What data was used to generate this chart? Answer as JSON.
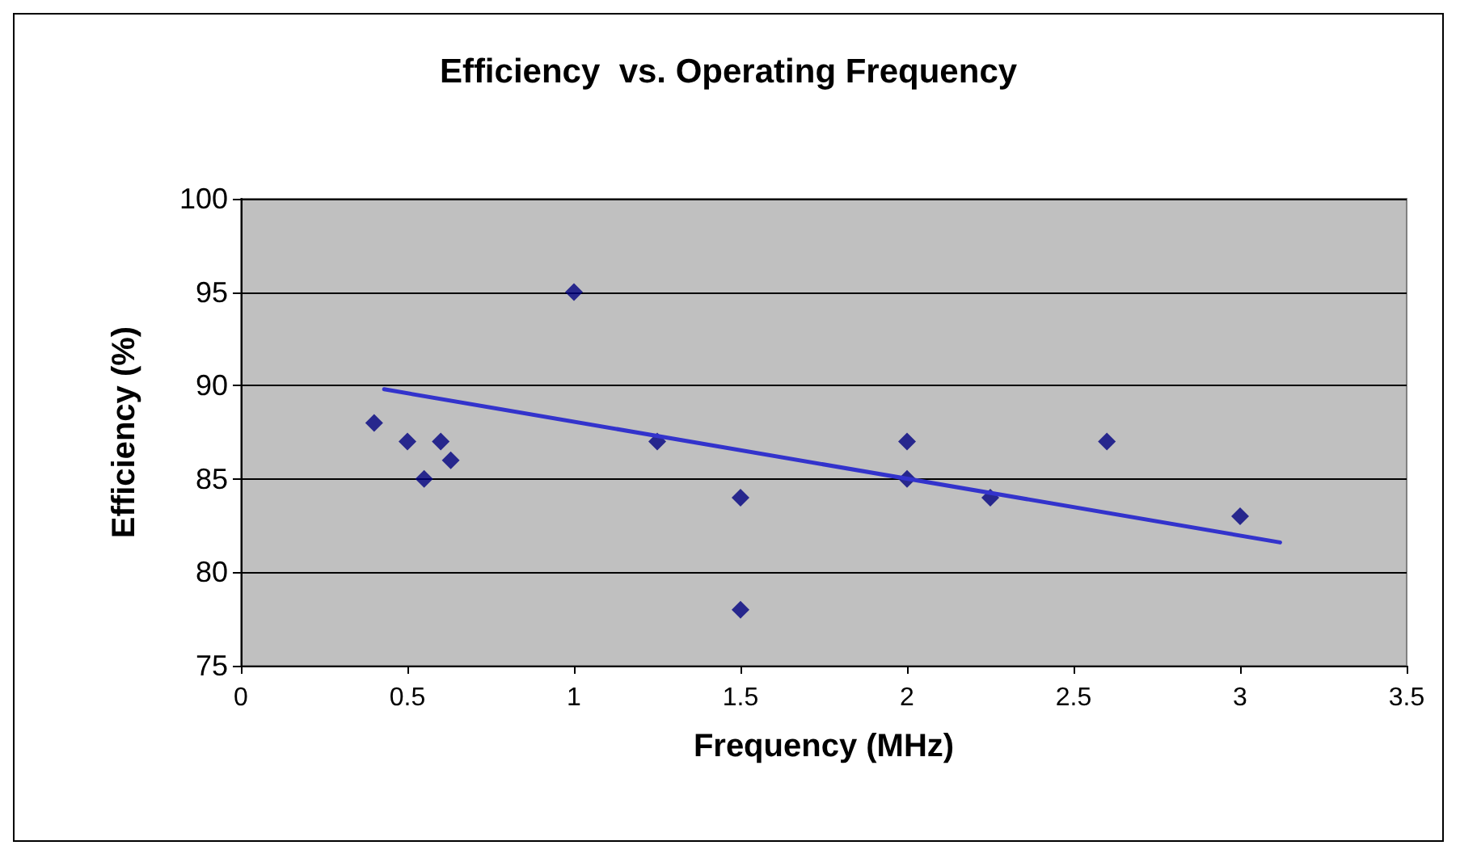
{
  "chart_data": {
    "type": "scatter",
    "title": "Efficiency  vs. Operating Frequency",
    "xlabel": "Frequency (MHz)",
    "ylabel": "Efficiency (%)",
    "xlim": [
      0,
      3.5
    ],
    "xticks": [
      0,
      0.5,
      1,
      1.5,
      2,
      2.5,
      3,
      3.5
    ],
    "ylim": [
      75,
      100
    ],
    "yticks": [
      75,
      80,
      85,
      90,
      95,
      100
    ],
    "grid": "y",
    "series": [
      {
        "color": "#000080",
        "marker": "diamond",
        "x": [
          0.4,
          0.5,
          0.55,
          0.6,
          0.63,
          1.0,
          1.25,
          1.5,
          1.5,
          2.0,
          2.0,
          2.25,
          2.6,
          3.0
        ],
        "values": [
          88,
          87,
          85,
          87,
          86,
          95,
          87,
          84,
          78,
          87,
          85,
          84,
          87,
          83
        ]
      },
      {
        "type": "line",
        "color": "#3333cc",
        "marker": "none",
        "line_style": "solid",
        "x": [
          0.43,
          3.12
        ],
        "values": [
          89.8,
          81.6
        ]
      }
    ]
  }
}
